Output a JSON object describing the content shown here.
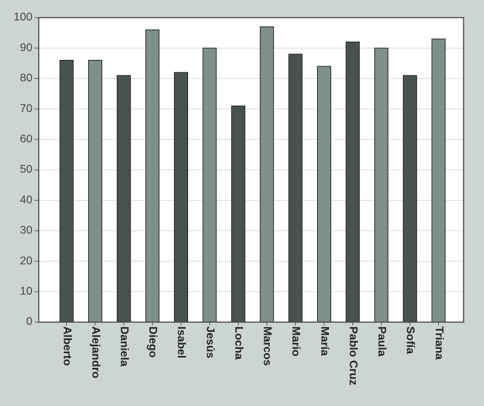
{
  "chart_data": {
    "type": "bar",
    "categories": [
      "Alberto",
      "Alejandro",
      "Daniela",
      "Diego",
      "Isabel",
      "Jesús",
      "Locha",
      "Marcos",
      "Mario",
      "María",
      "Pablo Cruz",
      "Paula",
      "Sofía",
      "Triana"
    ],
    "values": [
      86,
      86,
      81,
      96,
      82,
      90,
      71,
      97,
      88,
      84,
      92,
      90,
      81,
      93
    ],
    "colors": [
      "#4a524f",
      "#7f8f89",
      "#4a524f",
      "#7f8f89",
      "#4a524f",
      "#7f8f89",
      "#4a524f",
      "#7f8f89",
      "#4a524f",
      "#7f8f89",
      "#4a524f",
      "#7f8f89",
      "#4a524f",
      "#7f8f89"
    ],
    "ylim": [
      0,
      100
    ],
    "yticks": [
      0,
      10,
      20,
      30,
      40,
      50,
      60,
      70,
      80,
      90,
      100
    ],
    "grid": true
  }
}
